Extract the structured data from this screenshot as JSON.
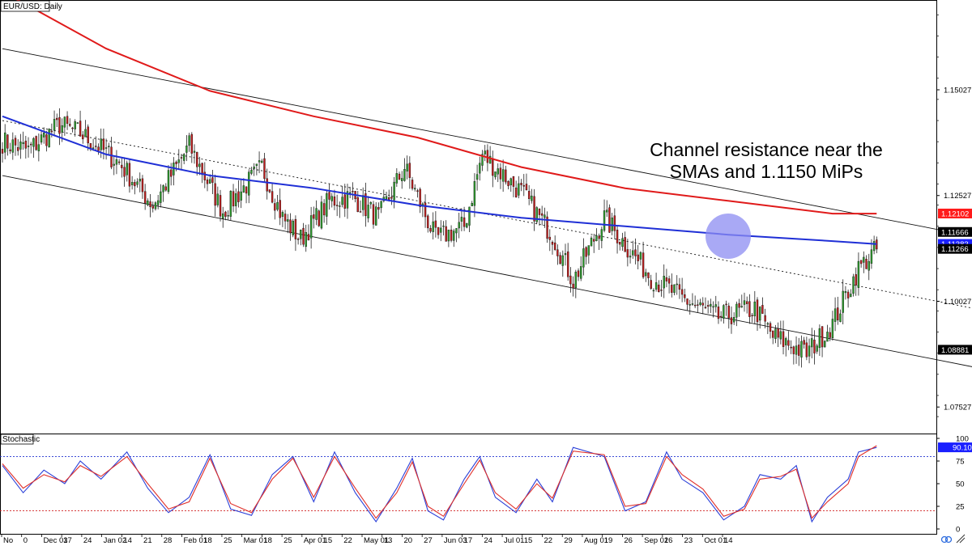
{
  "colors": {
    "bull": "#2e9e2e",
    "bear": "#c21e1e",
    "sma_fast": "#1f2fd6",
    "sma_slow": "#e01a1a",
    "stoch_k": "#2a3fd8",
    "stoch_d": "#e0302a",
    "badge_red": "#ff1a1a",
    "badge_blue": "#1a20ff",
    "badge_black": "#000000",
    "highlight": "#8c8cf2"
  },
  "chart_data": [
    {
      "type": "candlestick",
      "title": "EUR/USD: Daily",
      "ylim": [
        1.069,
        1.1715
      ],
      "yticks": [
        1.15027,
        1.12527,
        1.10027,
        1.07527
      ],
      "ytick_labels": [
        "1.15027",
        "1.12527",
        "1.10027",
        "1.07527"
      ],
      "x_labels": [
        "No",
        "0",
        "Dec 03",
        "17",
        "24",
        "Jan 02",
        "14",
        "21",
        "28",
        "Feb 01",
        "18",
        "25",
        "Mar 01",
        "18",
        "25",
        "Apr 01",
        "15",
        "22",
        "May 01",
        "13",
        "20",
        "27",
        "Jun 03",
        "17",
        "24",
        "Jul 01",
        "15",
        "22",
        "29",
        "Aug 01",
        "19",
        "26",
        "Sep 02",
        "16",
        "23",
        "Oct 01",
        "14"
      ],
      "anchors": [
        {
          "i": 0,
          "c": 1.138
        },
        {
          "i": 10,
          "c": 1.136
        },
        {
          "i": 22,
          "c": 1.142
        },
        {
          "i": 30,
          "c": 1.14
        },
        {
          "i": 45,
          "c": 1.133
        },
        {
          "i": 58,
          "c": 1.123
        },
        {
          "i": 72,
          "c": 1.137
        },
        {
          "i": 85,
          "c": 1.1215
        },
        {
          "i": 100,
          "c": 1.132
        },
        {
          "i": 108,
          "c": 1.12
        },
        {
          "i": 115,
          "c": 1.115
        },
        {
          "i": 126,
          "c": 1.124
        },
        {
          "i": 135,
          "c": 1.125
        },
        {
          "i": 145,
          "c": 1.12
        },
        {
          "i": 155,
          "c": 1.132
        },
        {
          "i": 167,
          "c": 1.115
        },
        {
          "i": 178,
          "c": 1.118
        },
        {
          "i": 185,
          "c": 1.135
        },
        {
          "i": 200,
          "c": 1.126
        },
        {
          "i": 212,
          "c": 1.116
        },
        {
          "i": 220,
          "c": 1.105
        },
        {
          "i": 232,
          "c": 1.12
        },
        {
          "i": 250,
          "c": 1.106
        },
        {
          "i": 262,
          "c": 1.101
        },
        {
          "i": 276,
          "c": 1.0965
        },
        {
          "i": 290,
          "c": 1.0985
        },
        {
          "i": 297,
          "c": 1.092
        },
        {
          "i": 310,
          "c": 1.088
        },
        {
          "i": 320,
          "c": 1.095
        },
        {
          "i": 330,
          "c": 1.108
        },
        {
          "i": 337,
          "c": 1.1126
        }
      ],
      "series": [
        {
          "name": "sma_fast",
          "points": [
            [
              0,
              1.144
            ],
            [
              40,
              1.135
            ],
            [
              80,
              1.13
            ],
            [
              120,
              1.127
            ],
            [
              160,
              1.123
            ],
            [
              200,
              1.12
            ],
            [
              240,
              1.118
            ],
            [
              280,
              1.116
            ],
            [
              320,
              1.1145
            ],
            [
              337,
              1.1138
            ]
          ]
        },
        {
          "name": "sma_slow",
          "points": [
            [
              0,
              1.1735
            ],
            [
              40,
              1.16
            ],
            [
              80,
              1.15
            ],
            [
              120,
              1.144
            ],
            [
              160,
              1.139
            ],
            [
              200,
              1.132
            ],
            [
              240,
              1.127
            ],
            [
              280,
              1.124
            ],
            [
              320,
              1.121
            ],
            [
              337,
              1.121
            ]
          ]
        }
      ],
      "channel": {
        "upper": [
          [
            0,
            1.16
          ],
          [
            430,
            1.109
          ]
        ],
        "middle": [
          [
            0,
            1.143
          ],
          [
            430,
            1.092
          ]
        ],
        "lower": [
          [
            0,
            1.13
          ],
          [
            430,
            1.078
          ]
        ]
      },
      "price_badges": [
        {
          "label": "1.12102",
          "value": 1.12102,
          "color": "badge_red"
        },
        {
          "label": "1.11666",
          "value": 1.11666,
          "color": "badge_black"
        },
        {
          "label": "1.11383",
          "value": 1.11383,
          "color": "badge_blue"
        },
        {
          "label": "1.11266",
          "value": 1.11266,
          "color": "badge_black"
        },
        {
          "label": "1.08881",
          "value": 1.08881,
          "color": "badge_black"
        }
      ],
      "annotation": {
        "lines": [
          "Channel resistance near the",
          "SMAs and 1.1150 MiPs"
        ]
      }
    },
    {
      "type": "line",
      "title": "Stochastic",
      "ylim": [
        0,
        100
      ],
      "yticks": [
        100,
        75,
        50,
        25,
        0
      ],
      "ytick_labels": [
        "100",
        "75",
        "50",
        "25",
        "0"
      ],
      "levels": [
        80,
        20
      ],
      "value_badge": {
        "label": "90.10",
        "value": 90.1
      },
      "series": [
        {
          "name": "k",
          "points": [
            [
              0,
              70
            ],
            [
              8,
              40
            ],
            [
              16,
              65
            ],
            [
              24,
              50
            ],
            [
              30,
              75
            ],
            [
              38,
              55
            ],
            [
              48,
              85
            ],
            [
              56,
              45
            ],
            [
              64,
              18
            ],
            [
              72,
              35
            ],
            [
              80,
              82
            ],
            [
              88,
              22
            ],
            [
              96,
              15
            ],
            [
              104,
              60
            ],
            [
              112,
              80
            ],
            [
              120,
              30
            ],
            [
              128,
              85
            ],
            [
              136,
              40
            ],
            [
              144,
              8
            ],
            [
              152,
              45
            ],
            [
              158,
              78
            ],
            [
              164,
              20
            ],
            [
              170,
              10
            ],
            [
              178,
              55
            ],
            [
              184,
              80
            ],
            [
              190,
              35
            ],
            [
              198,
              18
            ],
            [
              206,
              55
            ],
            [
              212,
              30
            ],
            [
              220,
              90
            ],
            [
              232,
              80
            ],
            [
              240,
              20
            ],
            [
              248,
              30
            ],
            [
              256,
              85
            ],
            [
              262,
              55
            ],
            [
              270,
              40
            ],
            [
              278,
              10
            ],
            [
              286,
              25
            ],
            [
              292,
              60
            ],
            [
              300,
              55
            ],
            [
              306,
              70
            ],
            [
              312,
              8
            ],
            [
              318,
              35
            ],
            [
              326,
              55
            ],
            [
              330,
              85
            ],
            [
              337,
              90
            ]
          ]
        },
        {
          "name": "d",
          "points": [
            [
              0,
              72
            ],
            [
              8,
              45
            ],
            [
              16,
              60
            ],
            [
              24,
              52
            ],
            [
              30,
              70
            ],
            [
              38,
              58
            ],
            [
              48,
              80
            ],
            [
              56,
              50
            ],
            [
              64,
              22
            ],
            [
              72,
              30
            ],
            [
              80,
              78
            ],
            [
              88,
              28
            ],
            [
              96,
              18
            ],
            [
              104,
              55
            ],
            [
              112,
              78
            ],
            [
              120,
              35
            ],
            [
              128,
              80
            ],
            [
              136,
              45
            ],
            [
              144,
              12
            ],
            [
              152,
              40
            ],
            [
              158,
              74
            ],
            [
              164,
              25
            ],
            [
              170,
              14
            ],
            [
              178,
              50
            ],
            [
              184,
              76
            ],
            [
              190,
              40
            ],
            [
              198,
              22
            ],
            [
              206,
              50
            ],
            [
              212,
              34
            ],
            [
              220,
              86
            ],
            [
              232,
              82
            ],
            [
              240,
              25
            ],
            [
              248,
              28
            ],
            [
              256,
              80
            ],
            [
              262,
              60
            ],
            [
              270,
              44
            ],
            [
              278,
              14
            ],
            [
              286,
              22
            ],
            [
              292,
              55
            ],
            [
              300,
              58
            ],
            [
              306,
              66
            ],
            [
              312,
              12
            ],
            [
              318,
              30
            ],
            [
              326,
              50
            ],
            [
              330,
              80
            ],
            [
              337,
              92
            ]
          ]
        }
      ]
    }
  ]
}
